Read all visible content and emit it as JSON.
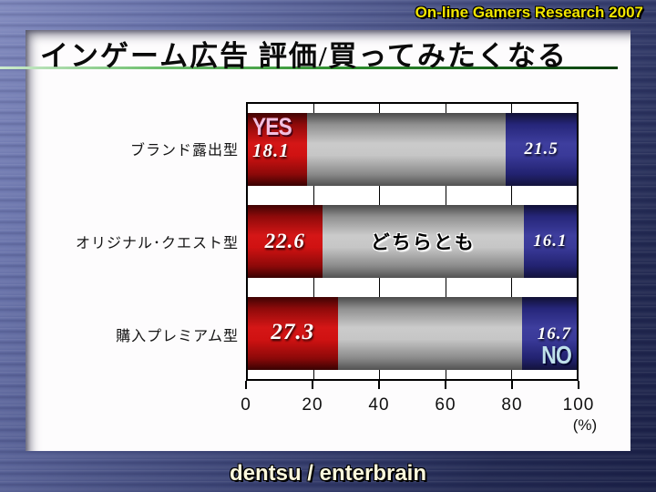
{
  "header": {
    "research_label": "On-line Gamers Research 2007"
  },
  "title": "インゲーム広告 評価/買ってみたくなる",
  "footer": {
    "credit": "dentsu / enterbrain"
  },
  "colors": {
    "yes_red": "#d01212",
    "neutral_gray": "#c6c6c6",
    "no_blue": "#3a3a99",
    "background_blue_light": "#8089bd",
    "background_blue_dark": "#1b2147",
    "title_underline_green": "#2f8f2f",
    "header_text_yellow": "#f2e600",
    "footer_text_cream": "#fcf8dc",
    "yes_word_pink": "#f2bfe0",
    "no_word_lightblue": "#bfe0ea"
  },
  "chart_data": {
    "type": "bar",
    "orientation": "horizontal-stacked",
    "title": "インゲーム広告 評価/買ってみたくなる",
    "categories": [
      "ブランド露出型",
      "オリジナル･クエスト型",
      "購入プレミアム型"
    ],
    "series": [
      {
        "name": "YES",
        "values": [
          18.1,
          22.6,
          27.3
        ]
      },
      {
        "name": "どちらとも",
        "values": [
          60.4,
          61.3,
          56.0
        ]
      },
      {
        "name": "NO",
        "values": [
          21.5,
          16.1,
          16.7
        ]
      }
    ],
    "shown_value_labels": {
      "yes": [
        "18.1",
        "22.6",
        "27.3"
      ],
      "no": [
        "21.5",
        "16.1",
        "16.7"
      ]
    },
    "xticks": [
      "0",
      "20",
      "40",
      "60",
      "80",
      "100"
    ],
    "x_unit": "(%)",
    "xlim": [
      0,
      100
    ],
    "grid": true,
    "legend_position": "none"
  }
}
